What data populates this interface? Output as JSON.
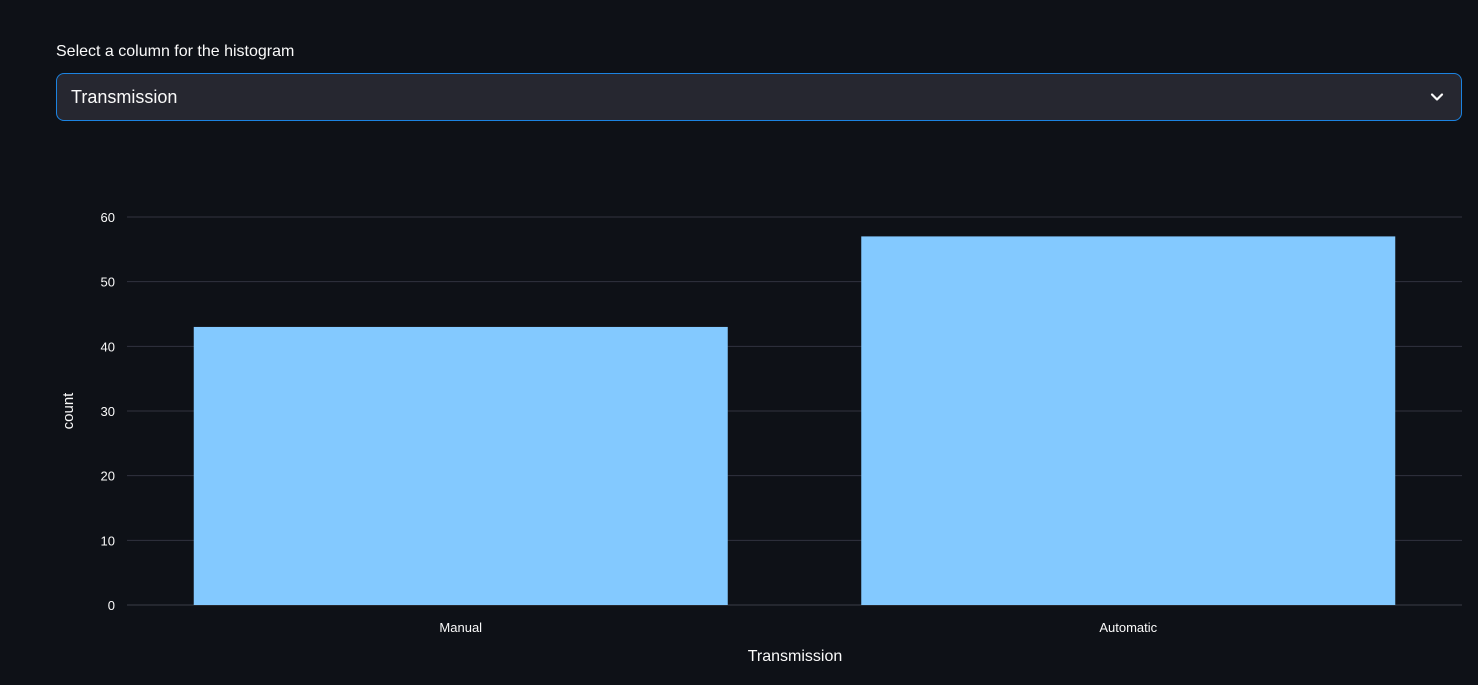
{
  "selector": {
    "label": "Select a column for the histogram",
    "value": "Transmission",
    "icon": "chevron-down-icon"
  },
  "colors": {
    "background": "#0e1117",
    "bar": "#83c9ff",
    "grid": "#31333f",
    "select_border": "#1c83e1",
    "select_bg": "#262730"
  },
  "chart_data": {
    "type": "bar",
    "categories": [
      "Manual",
      "Automatic"
    ],
    "values": [
      43,
      57
    ],
    "xlabel": "Transmission",
    "ylabel": "count",
    "ylim": [
      0,
      60
    ],
    "yticks": [
      0,
      10,
      20,
      30,
      40,
      50,
      60
    ],
    "grid": true
  }
}
